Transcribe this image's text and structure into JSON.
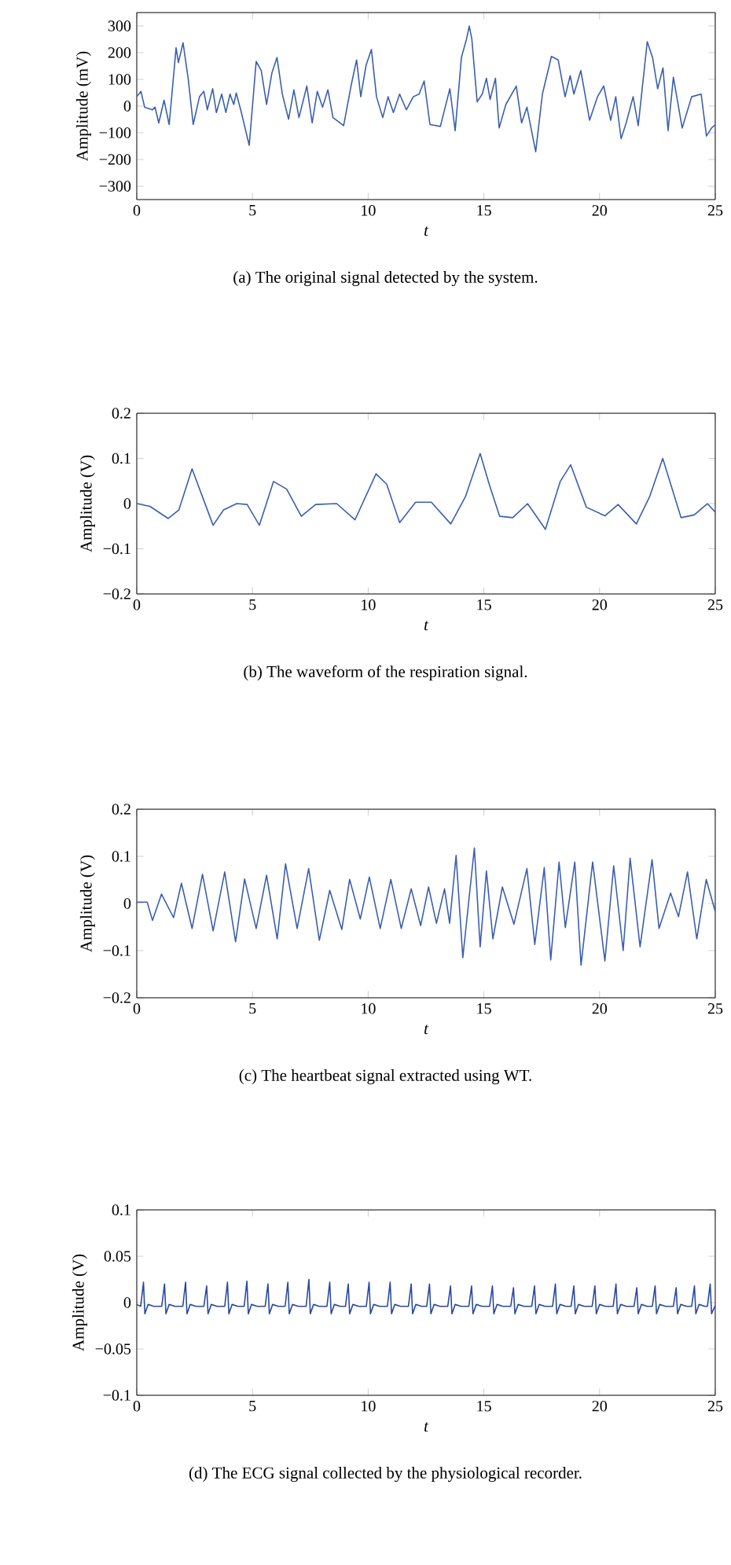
{
  "chart_data": [
    {
      "type": "line",
      "title": "(a) The original signal detected by the system.",
      "xlabel": "t",
      "ylabel": "Amplitude (mV)",
      "xlim": [
        0,
        25
      ],
      "ylim": [
        -350,
        350
      ],
      "xticks": [
        0,
        5,
        10,
        15,
        20,
        25
      ],
      "yticks": [
        {
          "value": -300,
          "label": "−300"
        },
        {
          "value": -200,
          "label": "−200"
        },
        {
          "value": -100,
          "label": "−100"
        },
        0,
        100,
        200,
        300
      ],
      "series": [
        {
          "color": "#3a5fb0",
          "x": [
            0,
            0.18,
            0.34,
            0.68,
            0.79,
            0.95,
            1.18,
            1.4,
            1.7,
            1.8,
            2.0,
            2.22,
            2.44,
            2.71,
            2.9,
            3.05,
            3.28,
            3.44,
            3.67,
            3.85,
            4.03,
            4.19,
            4.3,
            4.52,
            4.86,
            5.16,
            5.38,
            5.61,
            5.84,
            6.06,
            6.29,
            6.56,
            6.79,
            7.01,
            7.35,
            7.58,
            7.8,
            8.03,
            8.26,
            8.48,
            8.94,
            9.28,
            9.5,
            9.68,
            9.91,
            10.14,
            10.36,
            10.63,
            10.86,
            11.09,
            11.36,
            11.65,
            11.95,
            12.2,
            12.42,
            12.67,
            13.12,
            13.53,
            13.76,
            14.03,
            14.25,
            14.37,
            14.48,
            14.71,
            14.93,
            15.11,
            15.27,
            15.5,
            15.66,
            15.95,
            16.4,
            16.63,
            16.86,
            17.24,
            17.53,
            17.92,
            18.21,
            18.51,
            18.73,
            18.89,
            19.19,
            19.57,
            19.91,
            20.18,
            20.48,
            20.7,
            20.93,
            21.15,
            21.45,
            21.67,
            22.06,
            22.29,
            22.51,
            22.74,
            22.96,
            23.19,
            23.57,
            23.98,
            24.39,
            24.62,
            24.84,
            25
          ],
          "values": [
            35,
            55,
            -4,
            -14,
            -4,
            -63,
            22,
            -69,
            218,
            163,
            237,
            104,
            -69,
            35,
            55,
            -14,
            65,
            -24,
            45,
            -24,
            45,
            6,
            49,
            -24,
            -147,
            167,
            133,
            6,
            124,
            182,
            45,
            -49,
            61,
            -43,
            75,
            -63,
            55,
            -4,
            61,
            -43,
            -73,
            84,
            173,
            35,
            153,
            212,
            35,
            -43,
            35,
            -24,
            45,
            -14,
            35,
            45,
            94,
            -69,
            -76,
            65,
            -92,
            182,
            251,
            300,
            251,
            16,
            45,
            104,
            25,
            104,
            -82,
            6,
            75,
            -63,
            -4,
            -171,
            45,
            186,
            173,
            35,
            114,
            45,
            133,
            -53,
            35,
            75,
            -53,
            35,
            -122,
            -63,
            35,
            -73,
            241,
            182,
            65,
            143,
            -92,
            108,
            -82,
            35,
            45,
            -112,
            -82,
            -70
          ]
        }
      ]
    },
    {
      "type": "line",
      "title": "(b) The waveform of the respiration signal.",
      "xlabel": "t",
      "ylabel": "Amplitude (V)",
      "xlim": [
        0,
        25
      ],
      "ylim": [
        -0.2,
        0.2
      ],
      "xticks": [
        0,
        5,
        10,
        15,
        20,
        25
      ],
      "yticks": [
        {
          "value": -0.2,
          "label": "−0.2"
        },
        {
          "value": -0.1,
          "label": "−0.1"
        },
        0,
        0.1,
        0.2
      ],
      "series": [
        {
          "color": "#3a5fb0",
          "x": [
            0,
            0.57,
            1.36,
            1.82,
            2.39,
            2.84,
            3.3,
            3.75,
            4.32,
            4.77,
            5.3,
            5.91,
            6.48,
            7.11,
            7.73,
            8.64,
            9.43,
            10.34,
            10.8,
            11.36,
            12.05,
            12.73,
            13.57,
            14.2,
            14.84,
            15.23,
            15.68,
            16.25,
            16.89,
            17.66,
            18.3,
            18.75,
            19.43,
            20.23,
            20.8,
            21.59,
            22.16,
            22.73,
            23.52,
            24.09,
            24.66,
            25
          ],
          "values": [
            0,
            -0.006,
            -0.033,
            -0.014,
            0.077,
            0.015,
            -0.048,
            -0.014,
            0,
            -0.002,
            -0.048,
            0.049,
            0.032,
            -0.028,
            -0.002,
            0,
            -0.036,
            0.066,
            0.043,
            -0.042,
            0.003,
            0.003,
            -0.045,
            0.015,
            0.111,
            0.043,
            -0.028,
            -0.031,
            0,
            -0.057,
            0.049,
            0.086,
            -0.008,
            -0.027,
            -0.002,
            -0.045,
            0.015,
            0.1,
            -0.031,
            -0.025,
            0,
            -0.019
          ]
        }
      ]
    },
    {
      "type": "line",
      "title": "(c) The heartbeat signal extracted using WT.",
      "xlabel": "t",
      "ylabel": "Amplitude (V)",
      "xlim": [
        0,
        25
      ],
      "ylim": [
        -0.2,
        0.2
      ],
      "xticks": [
        0,
        5,
        10,
        15,
        20,
        25
      ],
      "yticks": [
        {
          "value": -0.2,
          "label": "−0.2"
        },
        {
          "value": -0.1,
          "label": "−0.1"
        },
        0,
        0.1,
        0.2
      ],
      "series": [
        {
          "color": "#3a5fb0",
          "x": [
            0,
            0.45,
            0.68,
            1.07,
            1.59,
            1.93,
            2.39,
            2.84,
            3.3,
            3.8,
            4.27,
            4.66,
            5.16,
            5.61,
            6.07,
            6.43,
            6.93,
            7.43,
            7.89,
            8.34,
            8.86,
            9.2,
            9.66,
            10.05,
            10.52,
            10.98,
            11.43,
            11.86,
            12.27,
            12.61,
            12.95,
            13.3,
            13.52,
            13.8,
            14.09,
            14.59,
            14.84,
            15.11,
            15.39,
            15.8,
            16.3,
            16.86,
            17.2,
            17.61,
            17.89,
            18.25,
            18.52,
            18.93,
            19.2,
            19.7,
            20.23,
            20.61,
            21.02,
            21.32,
            21.75,
            22.27,
            22.57,
            23.07,
            23.41,
            23.8,
            24.2,
            24.61,
            25
          ],
          "values": [
            0.003,
            0.003,
            -0.036,
            0.02,
            -0.03,
            0.043,
            -0.053,
            0.062,
            -0.058,
            0.067,
            -0.081,
            0.052,
            -0.053,
            0.06,
            -0.075,
            0.084,
            -0.053,
            0.074,
            -0.078,
            0.028,
            -0.055,
            0.051,
            -0.033,
            0.056,
            -0.053,
            0.051,
            -0.053,
            0.031,
            -0.047,
            0.035,
            -0.042,
            0.031,
            -0.042,
            0.102,
            -0.115,
            0.118,
            -0.092,
            0.069,
            -0.075,
            0.035,
            -0.044,
            0.074,
            -0.087,
            0.076,
            -0.12,
            0.088,
            -0.051,
            0.088,
            -0.131,
            0.088,
            -0.122,
            0.08,
            -0.1,
            0.096,
            -0.092,
            0.093,
            -0.053,
            0.022,
            -0.028,
            0.067,
            -0.075,
            0.051,
            -0.017
          ]
        }
      ]
    },
    {
      "type": "line",
      "title": "(d) The ECG signal collected by the physiological recorder.",
      "xlabel": "t",
      "ylabel": "Amplitude (V)",
      "xlim": [
        0,
        25
      ],
      "ylim": [
        -0.1,
        0.1
      ],
      "xticks": [
        0,
        5,
        10,
        15,
        20,
        25
      ],
      "yticks": [
        {
          "value": -0.1,
          "label": "−0.1"
        },
        {
          "value": -0.05,
          "label": "−0.05"
        },
        0,
        0.05,
        0.1
      ],
      "series": [
        {
          "color": "#2a4aa0",
          "x": [
            0,
            0.17,
            0.29,
            0.35,
            0.49,
            0.74,
            1.08,
            1.2,
            1.26,
            1.4,
            1.65,
            1.99,
            2.11,
            2.17,
            2.31,
            2.56,
            2.9,
            3.02,
            3.08,
            3.22,
            3.47,
            3.8,
            3.92,
            3.98,
            4.12,
            4.37,
            4.64,
            4.76,
            4.82,
            4.96,
            5.21,
            5.55,
            5.67,
            5.73,
            5.87,
            6.12,
            6.41,
            6.53,
            6.59,
            6.73,
            6.98,
            7.32,
            7.44,
            7.5,
            7.64,
            7.89,
            8.22,
            8.34,
            8.4,
            8.54,
            8.79,
            9.02,
            9.14,
            9.2,
            9.34,
            9.59,
            9.92,
            10.04,
            10.1,
            10.24,
            10.49,
            10.83,
            10.95,
            11.01,
            11.15,
            11.4,
            11.74,
            11.86,
            11.92,
            12.06,
            12.31,
            12.53,
            12.65,
            12.71,
            12.85,
            13.1,
            13.44,
            13.56,
            13.62,
            13.76,
            14.01,
            14.35,
            14.47,
            14.53,
            14.67,
            14.92,
            15.25,
            15.37,
            15.43,
            15.57,
            15.82,
            16.16,
            16.28,
            16.34,
            16.48,
            16.73,
            17.07,
            17.19,
            17.25,
            17.39,
            17.64,
            17.97,
            18.09,
            18.15,
            18.29,
            18.54,
            18.77,
            18.89,
            18.95,
            19.09,
            19.34,
            19.68,
            19.8,
            19.86,
            20.0,
            20.25,
            20.59,
            20.71,
            20.77,
            20.91,
            21.16,
            21.49,
            21.61,
            21.67,
            21.81,
            22.06,
            22.28,
            22.4,
            22.46,
            22.6,
            22.85,
            23.19,
            23.31,
            23.37,
            23.51,
            23.76,
            23.98,
            24.1,
            24.16,
            24.3,
            24.55,
            24.66,
            24.78,
            24.84,
            25
          ],
          "values": [
            -0.002,
            -0.004,
            0.022,
            -0.012,
            -0.002,
            -0.004,
            -0.004,
            0.02,
            -0.012,
            -0.002,
            -0.004,
            -0.004,
            0.022,
            -0.012,
            -0.002,
            -0.004,
            -0.004,
            0.018,
            -0.012,
            -0.002,
            -0.004,
            -0.004,
            0.022,
            -0.012,
            -0.002,
            -0.004,
            -0.004,
            0.023,
            -0.012,
            -0.002,
            -0.004,
            -0.004,
            0.02,
            -0.012,
            -0.002,
            -0.004,
            -0.004,
            0.022,
            -0.012,
            -0.002,
            -0.004,
            -0.004,
            0.025,
            -0.012,
            -0.002,
            -0.004,
            -0.004,
            0.022,
            -0.012,
            -0.002,
            -0.004,
            -0.004,
            0.02,
            -0.012,
            -0.002,
            -0.004,
            -0.004,
            0.022,
            -0.012,
            -0.002,
            -0.004,
            -0.004,
            0.022,
            -0.012,
            -0.002,
            -0.004,
            -0.004,
            0.02,
            -0.012,
            -0.002,
            -0.004,
            -0.004,
            0.02,
            -0.012,
            -0.002,
            -0.004,
            -0.004,
            0.018,
            -0.012,
            -0.002,
            -0.004,
            -0.004,
            0.018,
            -0.012,
            -0.002,
            -0.004,
            -0.004,
            0.018,
            -0.012,
            -0.002,
            -0.004,
            -0.004,
            0.016,
            -0.012,
            -0.002,
            -0.004,
            -0.004,
            0.018,
            -0.012,
            -0.002,
            -0.004,
            -0.004,
            0.02,
            -0.012,
            -0.002,
            -0.004,
            -0.004,
            0.018,
            -0.012,
            -0.002,
            -0.004,
            -0.004,
            0.018,
            -0.012,
            -0.002,
            -0.004,
            -0.004,
            0.02,
            -0.012,
            -0.002,
            -0.004,
            -0.004,
            0.016,
            -0.012,
            -0.002,
            -0.004,
            -0.004,
            0.018,
            -0.012,
            -0.002,
            -0.004,
            -0.004,
            0.016,
            -0.012,
            -0.002,
            -0.004,
            -0.004,
            0.018,
            -0.012,
            -0.002,
            -0.004,
            -0.004,
            0.02,
            -0.012,
            -0.003
          ]
        }
      ]
    }
  ]
}
